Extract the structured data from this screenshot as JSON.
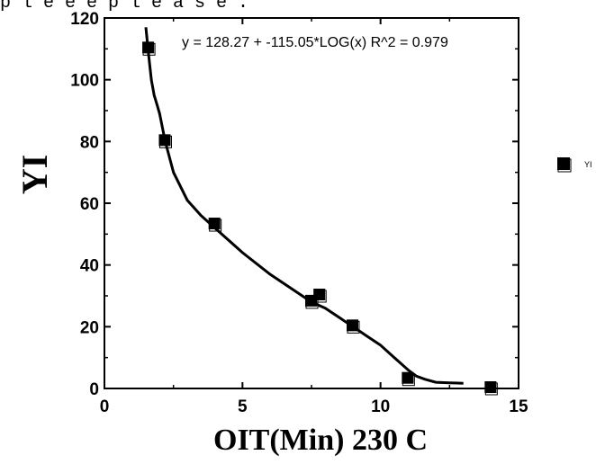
{
  "header_fragment": "p l e e e p l e a s e .",
  "chart_data": {
    "type": "scatter",
    "xlabel": "OIT(Min) 230 C",
    "ylabel": "YI",
    "xlim": [
      0,
      15
    ],
    "ylim": [
      0,
      120
    ],
    "x_ticks": [
      0,
      5,
      10,
      15
    ],
    "y_ticks": [
      0,
      20,
      40,
      60,
      80,
      100,
      120
    ],
    "series": [
      {
        "name": "YI",
        "x": [
          1.6,
          2.2,
          4.0,
          7.5,
          7.8,
          9.0,
          11.0,
          14.0
        ],
        "y": [
          110,
          80,
          53,
          28,
          30,
          20,
          3,
          0
        ]
      }
    ],
    "fit_curve": {
      "x": [
        1.5,
        1.6,
        1.7,
        1.8,
        1.9,
        2.0,
        2.2,
        2.5,
        3.0,
        3.5,
        4.0,
        5.0,
        6.0,
        7.0,
        7.5,
        8.0,
        8.5,
        9.0,
        9.5,
        10.0,
        10.5,
        11.0,
        11.3,
        11.6,
        12.0,
        12.5,
        13.0
      ],
      "y": [
        117,
        108,
        100,
        95,
        92,
        89,
        80,
        70,
        61,
        56,
        52,
        44,
        37,
        31,
        28,
        26,
        23,
        20,
        17,
        14,
        10,
        6,
        4,
        3,
        2,
        1.8,
        1.7
      ]
    },
    "equation": "y = 128.27 + -115.05*LOG(x)   R^2 = 0.979",
    "legend_position": "right",
    "grid": false
  }
}
